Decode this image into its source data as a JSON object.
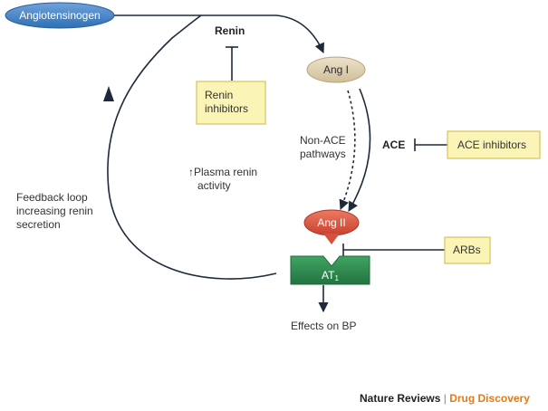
{
  "nodes": {
    "angiotensinogen": "Angiotensinogen",
    "ang1": "Ang I",
    "ang2": "Ang II",
    "at1_main": "AT",
    "at1_sub": "1"
  },
  "enzymes": {
    "renin": "Renin",
    "ace": "ACE"
  },
  "inhibitors": {
    "renin_line1": "Renin",
    "renin_line2": "inhibitors",
    "ace": "ACE inhibitors",
    "arbs": "ARBs"
  },
  "labels": {
    "non_ace_line1": "Non-ACE",
    "non_ace_line2": "pathways",
    "plasma_line1": "↑Plasma renin",
    "plasma_line2": "activity",
    "feedback_line1": "Feedback loop",
    "feedback_line2": "increasing renin",
    "feedback_line3": "secretion",
    "effects": "Effects on BP"
  },
  "footer": {
    "journal": "Nature Reviews",
    "separator": "|",
    "section": "Drug Discovery"
  },
  "colors": {
    "angiotensinogen_fill": "#4a86c8",
    "ang1_fill": "#ddd1b4",
    "ang2_fill": "#dd5a45",
    "at1_fill": "#2e8b4e",
    "inhibitor_fill": "#fbf4b7",
    "inhibitor_border": "#d8c25a",
    "arrow": "#1e2a3a",
    "footer_accent": "#e07b1c"
  }
}
